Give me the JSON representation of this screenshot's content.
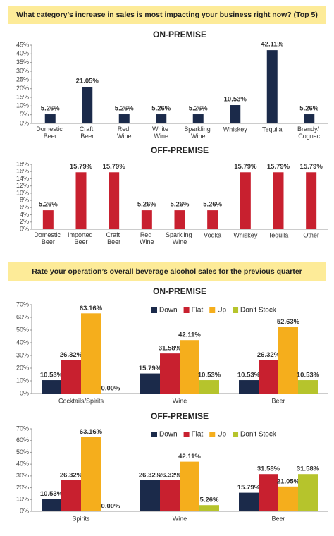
{
  "headers": [
    "What category’s increase in sales is most impacting your business right now? (Top 5)",
    "Rate your operation’s overall beverage alcohol sales for the previous quarter"
  ],
  "chart_data": [
    {
      "type": "bar",
      "title": "ON-PREMISE",
      "categories": [
        "Domestic Beer",
        "Craft Beer",
        "Red Wine",
        "White Wine",
        "Sparkling Wine",
        "Whiskey",
        "Tequila",
        "Brandy/ Cognac"
      ],
      "values": [
        5.26,
        21.05,
        5.26,
        5.26,
        5.26,
        10.53,
        42.11,
        5.26
      ],
      "value_labels": [
        "5.26%",
        "21.05%",
        "5.26%",
        "5.26%",
        "5.26%",
        "10.53%",
        "42.11%",
        "5.26%"
      ],
      "color": "#1b2a4a",
      "ylim": [
        0,
        45
      ],
      "yticks": [
        {
          "value": 0,
          "label": "0%"
        },
        {
          "value": 5,
          "label": "5%"
        },
        {
          "value": 10,
          "label": "10%"
        },
        {
          "value": 15,
          "label": "15%"
        },
        {
          "value": 20,
          "label": "20%"
        },
        {
          "value": 25,
          "label": "25%"
        },
        {
          "value": 30,
          "label": "30%"
        },
        {
          "value": 35,
          "label": "35%"
        },
        {
          "value": 40,
          "label": "40%"
        },
        {
          "value": 45,
          "label": "45%"
        }
      ]
    },
    {
      "type": "bar",
      "title": "OFF-PREMISE",
      "categories": [
        "Domestic Beer",
        "Imported Beer",
        "Craft Beer",
        "Red Wine",
        "Sparkling Wine",
        "Vodka",
        "Whiskey",
        "Tequila",
        "Other"
      ],
      "values": [
        5.26,
        15.79,
        15.79,
        5.26,
        5.26,
        5.26,
        15.79,
        15.79,
        15.79
      ],
      "value_labels": [
        "5.26%",
        "15.79%",
        "15.79%",
        "5.26%",
        "5.26%",
        "5.26%",
        "15.79%",
        "15.79%",
        "15.79%"
      ],
      "color": "#c8202f",
      "ylim": [
        0,
        18
      ],
      "yticks": [
        {
          "value": 0,
          "label": "0%"
        },
        {
          "value": 2,
          "label": "2%"
        },
        {
          "value": 4,
          "label": "4%"
        },
        {
          "value": 6,
          "label": "6%"
        },
        {
          "value": 8,
          "label": "8%"
        },
        {
          "value": 10,
          "label": "10%"
        },
        {
          "value": 12,
          "label": "12%"
        },
        {
          "value": 14,
          "label": "14%"
        },
        {
          "value": 16,
          "label": "16%"
        },
        {
          "value": 18,
          "label": "18%"
        }
      ]
    },
    {
      "type": "grouped_bar",
      "title": "ON-PREMISE",
      "legend": "top-right",
      "categories": [
        "Cocktails/Spirits",
        "Wine",
        "Beer"
      ],
      "series": [
        {
          "name": "Down",
          "color": "#1b2a4a",
          "values": [
            10.53,
            15.79,
            10.53
          ],
          "value_labels": [
            "10.53%",
            "15.79%",
            "10.53%"
          ]
        },
        {
          "name": "Flat",
          "color": "#c8202f",
          "values": [
            26.32,
            31.58,
            26.32
          ],
          "value_labels": [
            "26.32%",
            "31.58%",
            "26.32%"
          ]
        },
        {
          "name": "Up",
          "color": "#f5ae1c",
          "values": [
            63.16,
            42.11,
            52.63
          ],
          "value_labels": [
            "63.16%",
            "42.11%",
            "52.63%"
          ]
        },
        {
          "name": "Don't Stock",
          "color": "#b6c42c",
          "values": [
            0,
            10.53,
            10.53
          ],
          "value_labels": [
            "0.00%",
            "10.53%",
            "10.53%"
          ]
        }
      ],
      "ylim": [
        0,
        70
      ],
      "yticks": [
        {
          "value": 0,
          "label": "0%"
        },
        {
          "value": 10,
          "label": "10%"
        },
        {
          "value": 20,
          "label": "20%"
        },
        {
          "value": 30,
          "label": "30%"
        },
        {
          "value": 40,
          "label": "40%"
        },
        {
          "value": 50,
          "label": "50%"
        },
        {
          "value": 60,
          "label": "60%"
        },
        {
          "value": 70,
          "label": "70%"
        }
      ]
    },
    {
      "type": "grouped_bar",
      "title": "OFF-PREMISE",
      "legend": "top-right",
      "categories": [
        "Spirits",
        "Wine",
        "Beer"
      ],
      "series": [
        {
          "name": "Down",
          "color": "#1b2a4a",
          "values": [
            10.53,
            26.32,
            15.79
          ],
          "value_labels": [
            "10.53%",
            "26.32%",
            "15.79%"
          ]
        },
        {
          "name": "Flat",
          "color": "#c8202f",
          "values": [
            26.32,
            26.32,
            31.58
          ],
          "value_labels": [
            "26.32%",
            "26.32%",
            "31.58%"
          ]
        },
        {
          "name": "Up",
          "color": "#f5ae1c",
          "values": [
            63.16,
            42.11,
            21.05
          ],
          "value_labels": [
            "63.16%",
            "42.11%",
            "21.05%"
          ]
        },
        {
          "name": "Don't Stock",
          "color": "#b6c42c",
          "values": [
            0,
            5.26,
            31.58
          ],
          "value_labels": [
            "0.00%",
            "5.26%",
            "31.58%"
          ]
        }
      ],
      "ylim": [
        0,
        70
      ],
      "yticks": [
        {
          "value": 0,
          "label": "0%"
        },
        {
          "value": 10,
          "label": "10%"
        },
        {
          "value": 20,
          "label": "20%"
        },
        {
          "value": 30,
          "label": "30%"
        },
        {
          "value": 40,
          "label": "40%"
        },
        {
          "value": 50,
          "label": "50%"
        },
        {
          "value": 60,
          "label": "60%"
        },
        {
          "value": 70,
          "label": "70%"
        }
      ]
    }
  ]
}
